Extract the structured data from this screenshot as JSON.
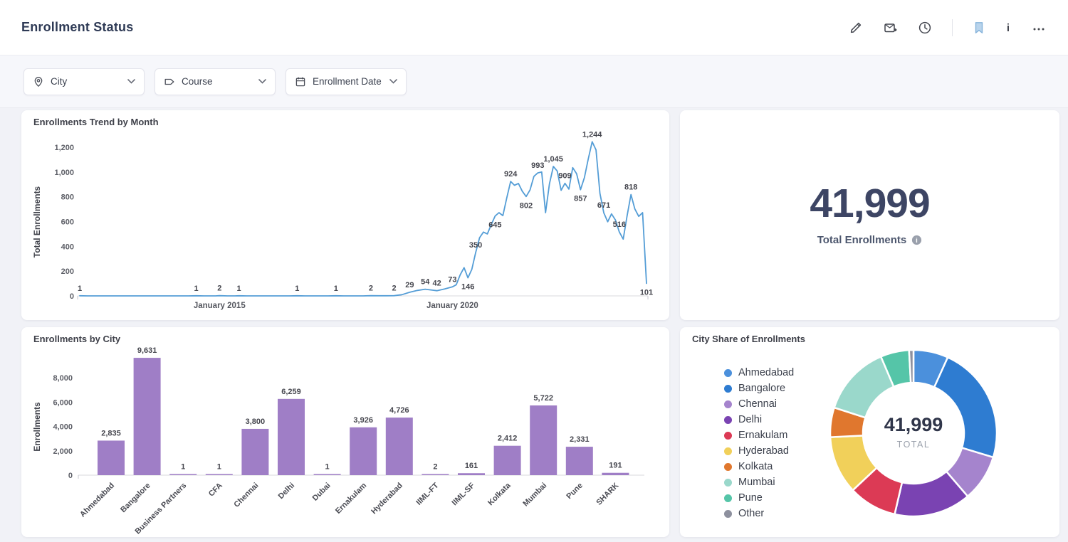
{
  "header": {
    "title": "Enrollment Status",
    "icons": [
      {
        "name": "edit-pencil-icon"
      },
      {
        "name": "export-add-icon"
      },
      {
        "name": "history-clock-icon"
      },
      {
        "name": "bookmark-icon"
      },
      {
        "name": "info-icon"
      },
      {
        "name": "more-options-icon"
      }
    ]
  },
  "filters": [
    {
      "icon": "location-pin-icon",
      "label": "City"
    },
    {
      "icon": "tag-icon",
      "label": "Course"
    },
    {
      "icon": "calendar-icon",
      "label": "Enrollment Date"
    }
  ],
  "kpi": {
    "value": "41,999",
    "label": "Total Enrollments"
  },
  "chart_data": [
    {
      "type": "line",
      "title": "Enrollments Trend by Month",
      "ylabel": "Total Enrollments",
      "ylim": [
        0,
        1200
      ],
      "line_color": "#549DD6",
      "yticks": [
        {
          "v": 0,
          "label": "0"
        },
        {
          "v": 200,
          "label": "200"
        },
        {
          "v": 400,
          "label": "400"
        },
        {
          "v": 600,
          "label": "600"
        },
        {
          "v": 800,
          "label": "800"
        },
        {
          "v": 1000,
          "label": "1,000"
        },
        {
          "v": 1200,
          "label": "1,200"
        }
      ],
      "xticks": [
        {
          "i": 36,
          "label": "January 2015"
        },
        {
          "i": 96,
          "label": "January 2020"
        }
      ],
      "points": [
        [
          0,
          1,
          "1"
        ],
        [
          2,
          0
        ],
        [
          28,
          0
        ],
        [
          30,
          1,
          "1"
        ],
        [
          32,
          0
        ],
        [
          35,
          0
        ],
        [
          36,
          2,
          "2"
        ],
        [
          38,
          0
        ],
        [
          40,
          0
        ],
        [
          41,
          1,
          "1"
        ],
        [
          43,
          0
        ],
        [
          54,
          0
        ],
        [
          56,
          1,
          "1"
        ],
        [
          58,
          0
        ],
        [
          64,
          0
        ],
        [
          66,
          1,
          "1"
        ],
        [
          68,
          0
        ],
        [
          73,
          0
        ],
        [
          75,
          2,
          "2"
        ],
        [
          77,
          1
        ],
        [
          79,
          1
        ],
        [
          81,
          2,
          "2"
        ],
        [
          83,
          10
        ],
        [
          85,
          29,
          "29"
        ],
        [
          87,
          44
        ],
        [
          89,
          54,
          "54"
        ],
        [
          91,
          46
        ],
        [
          92,
          42,
          "42"
        ],
        [
          94,
          56
        ],
        [
          96,
          73,
          "73"
        ],
        [
          97,
          90
        ],
        [
          98,
          170
        ],
        [
          99,
          228
        ],
        [
          100,
          146,
          "146",
          "b"
        ],
        [
          101,
          215
        ],
        [
          102,
          350,
          "350"
        ],
        [
          103,
          470
        ],
        [
          104,
          515
        ],
        [
          105,
          500
        ],
        [
          106,
          575
        ],
        [
          107,
          645,
          "645",
          "b"
        ],
        [
          108,
          672
        ],
        [
          109,
          648
        ],
        [
          110,
          790
        ],
        [
          111,
          924,
          "924"
        ],
        [
          112,
          893
        ],
        [
          113,
          908
        ],
        [
          114,
          845
        ],
        [
          115,
          802,
          "802",
          "b"
        ],
        [
          116,
          855
        ],
        [
          117,
          965
        ],
        [
          118,
          993,
          "993"
        ],
        [
          119,
          1000
        ],
        [
          120,
          672
        ],
        [
          121,
          905
        ],
        [
          122,
          1045,
          "1,045"
        ],
        [
          123,
          1008
        ],
        [
          124,
          852
        ],
        [
          125,
          909,
          "909"
        ],
        [
          126,
          862
        ],
        [
          127,
          1035
        ],
        [
          128,
          985
        ],
        [
          129,
          857,
          "857",
          "b"
        ],
        [
          130,
          955
        ],
        [
          131,
          1105
        ],
        [
          132,
          1244,
          "1,244"
        ],
        [
          133,
          1178
        ],
        [
          134,
          828
        ],
        [
          135,
          671,
          "671"
        ],
        [
          136,
          598
        ],
        [
          137,
          662
        ],
        [
          138,
          612
        ],
        [
          139,
          516,
          "516"
        ],
        [
          140,
          458
        ],
        [
          141,
          645
        ],
        [
          142,
          818,
          "818"
        ],
        [
          143,
          702
        ],
        [
          144,
          642
        ],
        [
          145,
          672
        ],
        [
          146,
          101,
          "101",
          "b"
        ]
      ]
    },
    {
      "type": "bar",
      "title": "Enrollments by City",
      "ylabel": "Enrollments",
      "bar_color": "#9F7EC6",
      "categories": [
        "Ahmedabad",
        "Bangalore",
        "Business Partners",
        "CFA",
        "Chennai",
        "Delhi",
        "Dubai",
        "Ernakulam",
        "Hyderabad",
        "IIML-FT",
        "IIML-SF",
        "Kolkata",
        "Mumbai",
        "Pune",
        "SHARK"
      ],
      "values": [
        2835,
        9631,
        1,
        1,
        3800,
        6259,
        1,
        3926,
        4726,
        2,
        161,
        2412,
        5722,
        2331,
        191
      ],
      "value_labels": [
        "2,835",
        "9,631",
        "1",
        "1",
        "3,800",
        "6,259",
        "1",
        "3,926",
        "4,726",
        "2",
        "161",
        "2,412",
        "5,722",
        "2,331",
        "191"
      ],
      "yticks": [
        {
          "v": 0,
          "label": "0"
        },
        {
          "v": 2000,
          "label": "2,000"
        },
        {
          "v": 4000,
          "label": "4,000"
        },
        {
          "v": 6000,
          "label": "6,000"
        },
        {
          "v": 8000,
          "label": "8,000"
        }
      ]
    },
    {
      "type": "donut",
      "title": "City Share of Enrollments",
      "center_value": "41,999",
      "center_label": "TOTAL",
      "slices": [
        {
          "name": "Ahmedabad",
          "value": 2835,
          "color": "#4B90DC"
        },
        {
          "name": "Bangalore",
          "value": 9631,
          "color": "#2E7CD1"
        },
        {
          "name": "Chennai",
          "value": 3800,
          "color": "#A584CD"
        },
        {
          "name": "Delhi",
          "value": 6259,
          "color": "#7A43B2"
        },
        {
          "name": "Ernakulam",
          "value": 3926,
          "color": "#DC3A55"
        },
        {
          "name": "Hyderabad",
          "value": 4726,
          "color": "#F1D05A"
        },
        {
          "name": "Kolkata",
          "value": 2412,
          "color": "#E0772E"
        },
        {
          "name": "Mumbai",
          "value": 5722,
          "color": "#9AD8CB"
        },
        {
          "name": "Pune",
          "value": 2331,
          "color": "#55C5A8"
        },
        {
          "name": "Other",
          "value": 357,
          "color": "#8D909E"
        }
      ]
    }
  ]
}
